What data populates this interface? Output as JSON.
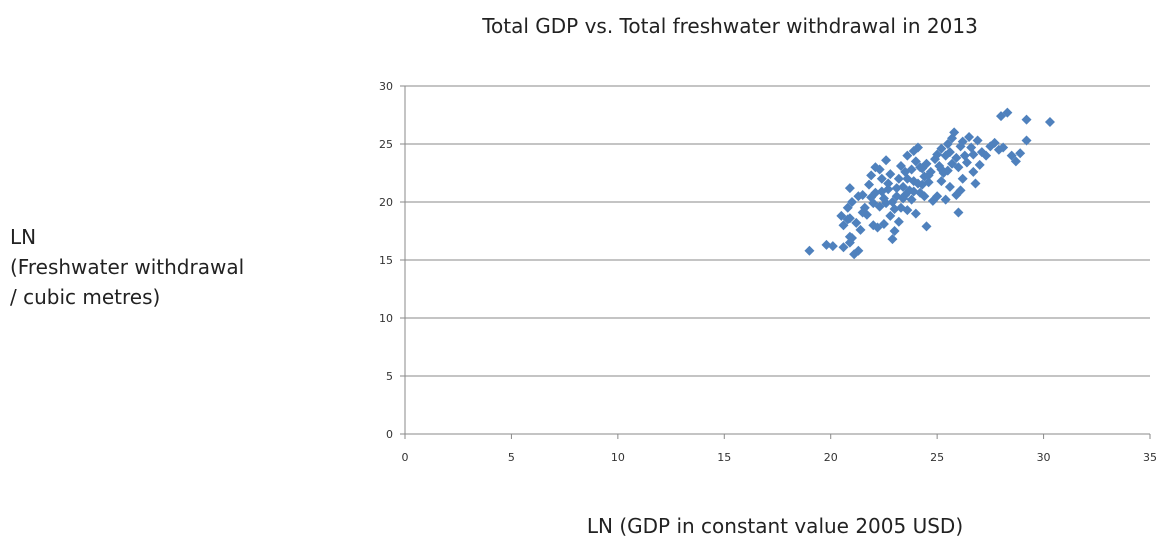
{
  "chart_data": {
    "type": "scatter",
    "title": "Total GDP vs. Total freshwater withdrawal in 2013",
    "xlabel": "LN (GDP in constant value 2005 USD)",
    "ylabel_lines": [
      "LN",
      "(Freshwater withdrawal",
      "/ cubic metres)"
    ],
    "xlim": [
      0,
      35
    ],
    "ylim": [
      0,
      30
    ],
    "xticks": [
      0,
      5,
      10,
      15,
      20,
      25,
      30,
      35
    ],
    "yticks": [
      0,
      5,
      10,
      15,
      20,
      25,
      30
    ],
    "grid": "horizontal",
    "marker": "diamond",
    "marker_color": "#4f81bd",
    "points": [
      [
        19.0,
        15.8
      ],
      [
        19.8,
        16.3
      ],
      [
        20.1,
        16.2
      ],
      [
        20.6,
        16.1
      ],
      [
        20.9,
        16.5
      ],
      [
        20.9,
        17.0
      ],
      [
        21.1,
        15.5
      ],
      [
        21.3,
        15.8
      ],
      [
        21.0,
        16.9
      ],
      [
        20.6,
        18.0
      ],
      [
        20.5,
        18.8
      ],
      [
        20.8,
        18.5
      ],
      [
        21.2,
        18.2
      ],
      [
        21.4,
        17.6
      ],
      [
        20.8,
        19.5
      ],
      [
        21.0,
        20.0
      ],
      [
        20.9,
        21.2
      ],
      [
        21.3,
        20.5
      ],
      [
        21.6,
        19.5
      ],
      [
        21.7,
        18.9
      ],
      [
        22.0,
        18.0
      ],
      [
        22.2,
        17.8
      ],
      [
        22.3,
        19.6
      ],
      [
        22.5,
        20.3
      ],
      [
        22.1,
        20.8
      ],
      [
        21.8,
        21.5
      ],
      [
        21.9,
        22.3
      ],
      [
        22.3,
        22.8
      ],
      [
        22.1,
        23.0
      ],
      [
        22.6,
        23.6
      ],
      [
        22.4,
        22.0
      ],
      [
        22.7,
        21.1
      ],
      [
        22.9,
        20.0
      ],
      [
        22.8,
        18.8
      ],
      [
        22.5,
        18.1
      ],
      [
        22.9,
        16.8
      ],
      [
        23.0,
        17.5
      ],
      [
        23.2,
        18.3
      ],
      [
        23.3,
        19.5
      ],
      [
        23.1,
        20.5
      ],
      [
        23.4,
        21.3
      ],
      [
        23.2,
        22.0
      ],
      [
        23.5,
        22.6
      ],
      [
        23.3,
        23.1
      ],
      [
        23.6,
        24.0
      ],
      [
        23.9,
        24.4
      ],
      [
        24.1,
        24.7
      ],
      [
        24.0,
        23.5
      ],
      [
        23.8,
        22.8
      ],
      [
        23.9,
        21.8
      ],
      [
        23.7,
        21.0
      ],
      [
        23.8,
        20.2
      ],
      [
        23.6,
        19.3
      ],
      [
        24.0,
        19.0
      ],
      [
        24.2,
        20.8
      ],
      [
        24.3,
        21.5
      ],
      [
        24.4,
        22.2
      ],
      [
        24.2,
        23.0
      ],
      [
        24.5,
        23.3
      ],
      [
        24.7,
        22.6
      ],
      [
        24.6,
        21.7
      ],
      [
        24.4,
        20.5
      ],
      [
        24.8,
        20.1
      ],
      [
        24.5,
        17.9
      ],
      [
        25.0,
        20.5
      ],
      [
        25.2,
        21.8
      ],
      [
        25.3,
        22.5
      ],
      [
        25.1,
        23.1
      ],
      [
        25.4,
        24.0
      ],
      [
        25.2,
        24.6
      ],
      [
        25.5,
        25.0
      ],
      [
        25.7,
        25.5
      ],
      [
        25.8,
        26.0
      ],
      [
        25.6,
        24.3
      ],
      [
        25.7,
        23.3
      ],
      [
        25.5,
        22.7
      ],
      [
        25.6,
        21.3
      ],
      [
        25.4,
        20.2
      ],
      [
        25.9,
        20.6
      ],
      [
        26.0,
        19.1
      ],
      [
        26.1,
        21.0
      ],
      [
        26.2,
        22.0
      ],
      [
        26.0,
        23.0
      ],
      [
        26.3,
        24.0
      ],
      [
        26.2,
        25.2
      ],
      [
        26.5,
        25.6
      ],
      [
        26.6,
        24.7
      ],
      [
        26.4,
        23.4
      ],
      [
        26.7,
        22.6
      ],
      [
        26.8,
        21.6
      ],
      [
        27.0,
        23.2
      ],
      [
        27.1,
        24.3
      ],
      [
        26.9,
        25.3
      ],
      [
        27.3,
        24.0
      ],
      [
        27.5,
        24.8
      ],
      [
        27.7,
        25.1
      ],
      [
        27.9,
        24.5
      ],
      [
        28.1,
        24.7
      ],
      [
        28.0,
        27.4
      ],
      [
        28.3,
        27.7
      ],
      [
        28.5,
        24.0
      ],
      [
        28.7,
        23.5
      ],
      [
        28.9,
        24.2
      ],
      [
        29.2,
        25.3
      ],
      [
        29.2,
        27.1
      ],
      [
        30.3,
        26.9
      ],
      [
        22.0,
        19.9
      ],
      [
        22.7,
        21.6
      ],
      [
        23.1,
        21.2
      ],
      [
        23.4,
        20.3
      ],
      [
        23.0,
        19.4
      ],
      [
        24.1,
        21.6
      ],
      [
        24.6,
        22.3
      ],
      [
        22.4,
        20.9
      ],
      [
        21.5,
        20.6
      ],
      [
        20.9,
        18.6
      ],
      [
        21.5,
        19.1
      ],
      [
        23.5,
        20.6
      ],
      [
        24.9,
        23.7
      ],
      [
        25.9,
        23.8
      ],
      [
        26.1,
        24.8
      ],
      [
        25.0,
        24.1
      ],
      [
        22.8,
        22.4
      ],
      [
        23.6,
        22.0
      ],
      [
        24.3,
        22.9
      ],
      [
        21.9,
        20.4
      ],
      [
        22.6,
        19.9
      ],
      [
        23.9,
        20.9
      ],
      [
        25.2,
        22.8
      ],
      [
        26.7,
        24.1
      ]
    ]
  }
}
